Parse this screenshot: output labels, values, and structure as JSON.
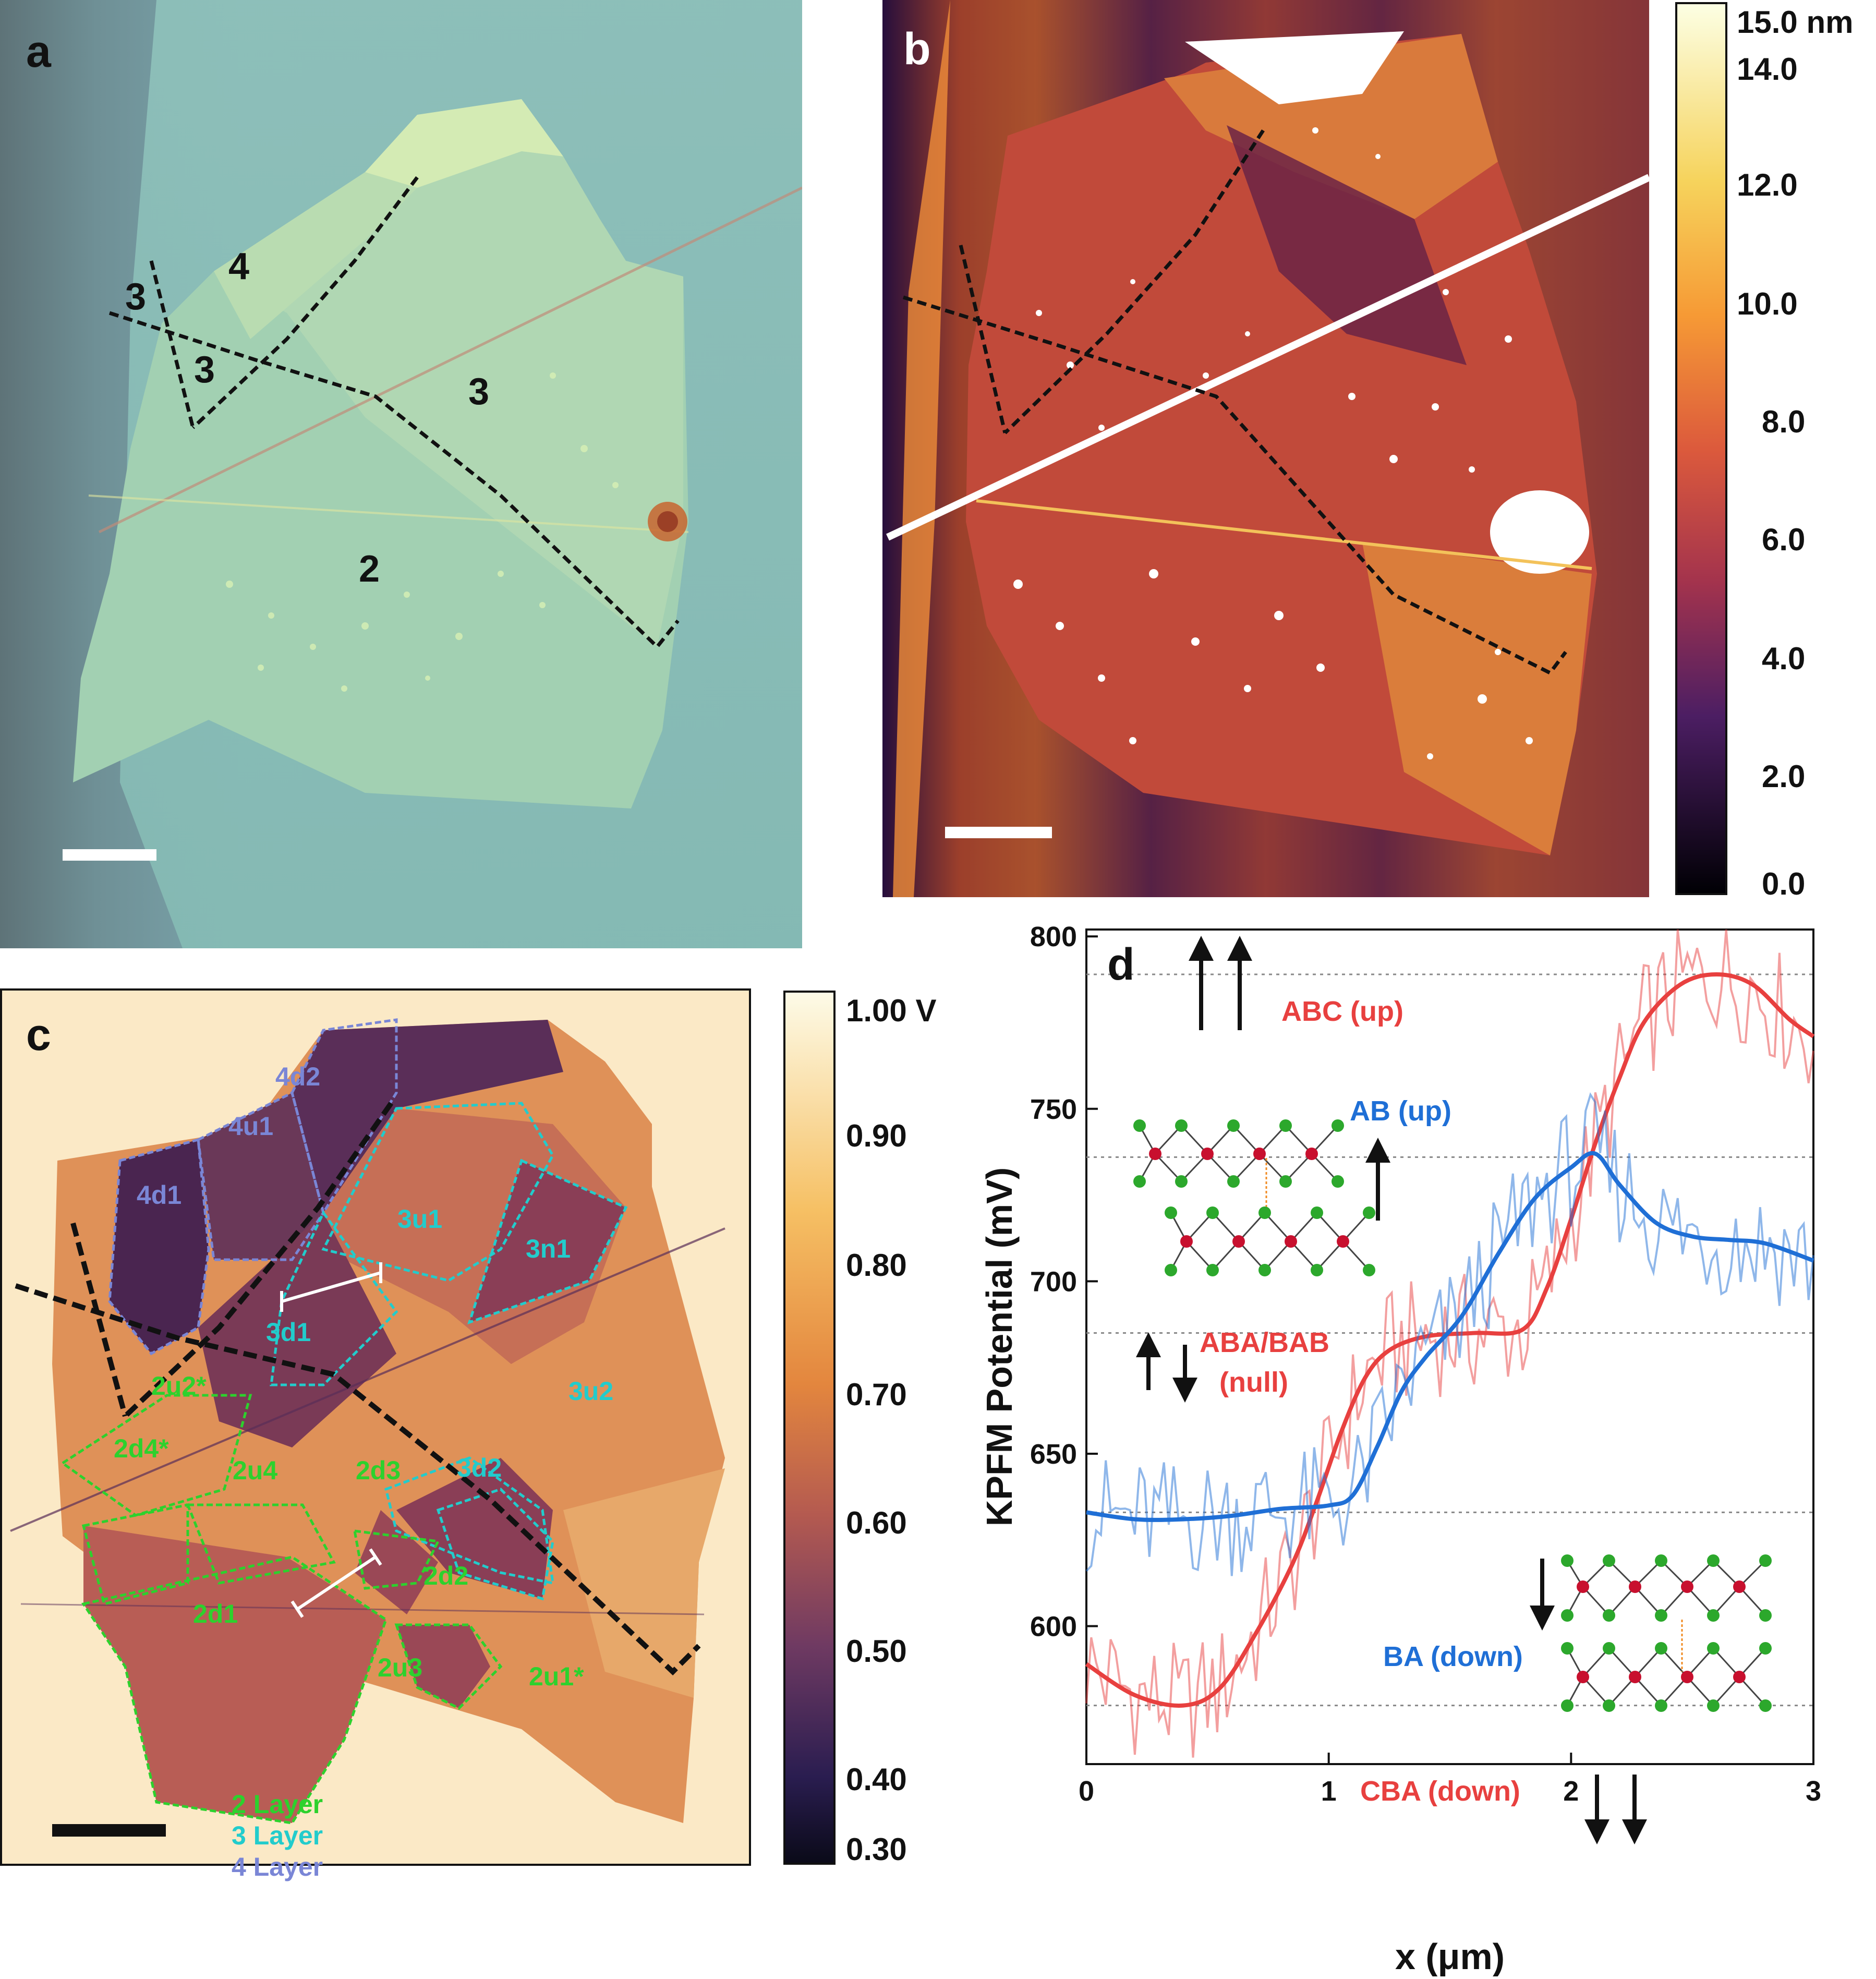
{
  "panels": {
    "a": {
      "label": "a",
      "region_labels": [
        "3",
        "4",
        "3",
        "3",
        "2"
      ]
    },
    "b": {
      "label": "b",
      "colorbar": {
        "ticks": [
          "15.0 nm",
          "14.0",
          "12.0",
          "10.0",
          "8.0",
          "6.0",
          "4.0",
          "2.0",
          "0.0"
        ],
        "tick_values": [
          15,
          14,
          12,
          10,
          8,
          6,
          4,
          2,
          0
        ]
      }
    },
    "c": {
      "label": "c",
      "region_labels": {
        "four_layer": [
          "4d2",
          "4u1",
          "4d1"
        ],
        "three_layer": [
          "3u1",
          "3n1",
          "3d1",
          "3u2",
          "3d2"
        ],
        "two_layer": [
          "2u2*",
          "2d4*",
          "2u4",
          "2d3",
          "2d2",
          "2d1",
          "2u3",
          "2u1*"
        ]
      },
      "legend": [
        "2 Layer",
        "3 Layer",
        "4 Layer"
      ],
      "legend_colors": [
        "#2dd12d",
        "#22cccc",
        "#7a86d6"
      ],
      "colorbar": {
        "ticks": [
          "1.00 V",
          "0.90",
          "0.80",
          "0.70",
          "0.60",
          "0.50",
          "0.40",
          "0.30"
        ],
        "tick_values": [
          1.0,
          0.9,
          0.8,
          0.7,
          0.6,
          0.5,
          0.4,
          0.3
        ]
      }
    },
    "d": {
      "label": "d",
      "annotations": {
        "abc": "ABC (up)",
        "ab": "AB (up)",
        "aba": "ABA/BAB",
        "null": "(null)",
        "ba": "BA (down)",
        "cba": "CBA (down)"
      },
      "annotation_colors": {
        "red": "#e8403f",
        "blue": "#1f6fd6"
      }
    }
  },
  "chart_data": {
    "type": "line",
    "xlabel": "x (μm)",
    "ylabel": "KPFM Potential (mV)",
    "xlim": [
      0,
      3
    ],
    "ylim": [
      560,
      802
    ],
    "xticks": [
      "0",
      "1",
      "2",
      "3"
    ],
    "yticks": [
      "600",
      "650",
      "700",
      "750",
      "800"
    ],
    "reference_levels": [
      789,
      736,
      685,
      633,
      577
    ],
    "series": [
      {
        "color": "#e8403f",
        "style": "smoothed",
        "x": [
          0,
          0.2,
          0.4,
          0.55,
          0.7,
          0.85,
          0.95,
          1.05,
          1.15,
          1.25,
          1.4,
          1.6,
          1.8,
          1.9,
          2.0,
          2.1,
          2.2,
          2.3,
          2.45,
          2.6,
          2.75,
          2.9,
          3.0
        ],
        "y": [
          589,
          580,
          577,
          582,
          598,
          618,
          636,
          656,
          672,
          680,
          684,
          685,
          686,
          698,
          718,
          740,
          759,
          775,
          786,
          789,
          786,
          776,
          771
        ]
      },
      {
        "color": "#1f6fd6",
        "style": "smoothed",
        "x": [
          0,
          0.2,
          0.4,
          0.6,
          0.8,
          1.0,
          1.1,
          1.2,
          1.3,
          1.4,
          1.55,
          1.7,
          1.85,
          2.0,
          2.1,
          2.2,
          2.35,
          2.5,
          2.65,
          2.8,
          3.0
        ],
        "y": [
          633,
          631,
          631,
          632,
          634,
          635,
          638,
          652,
          668,
          678,
          690,
          708,
          724,
          733,
          737,
          728,
          717,
          713,
          712,
          711,
          706
        ]
      }
    ]
  }
}
